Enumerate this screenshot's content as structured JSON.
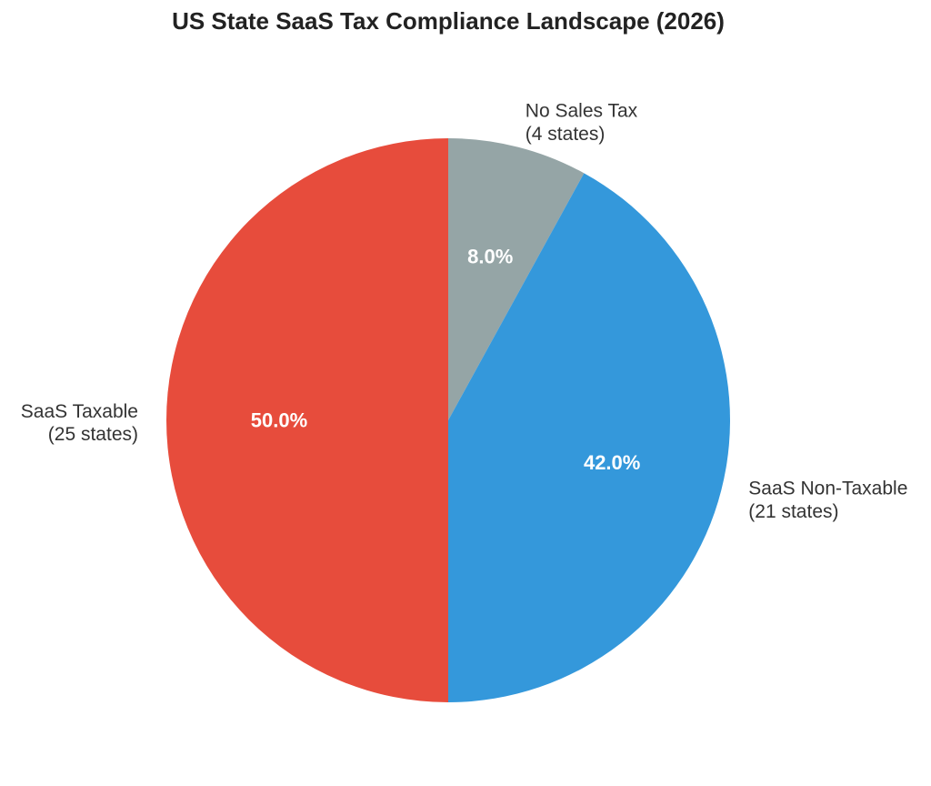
{
  "chart_data": {
    "type": "pie",
    "title": "US State SaaS Tax Compliance Landscape (2026)",
    "start_angle_deg": 90,
    "direction": "clockwise",
    "slices": [
      {
        "label": "No Sales Tax",
        "sublabel": "(4 states)",
        "value": 4,
        "percent_label": "8.0%",
        "color": "#95a5a6"
      },
      {
        "label": "SaaS Non-Taxable",
        "sublabel": "(21 states)",
        "value": 21,
        "percent_label": "42.0%",
        "color": "#3498db"
      },
      {
        "label": "SaaS Taxable",
        "sublabel": "(25 states)",
        "value": 25,
        "percent_label": "50.0%",
        "color": "#e74c3c"
      }
    ]
  }
}
